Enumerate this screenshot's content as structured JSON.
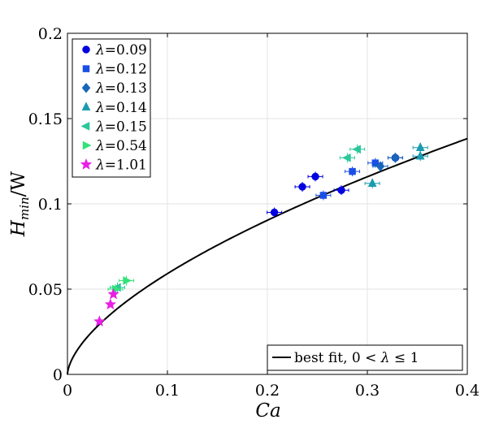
{
  "chart_data": {
    "type": "scatter",
    "xlabel": "Ca",
    "ylabel": "H_min/W",
    "ylabel_main": "H",
    "ylabel_sub": "min",
    "ylabel_tail": "/W",
    "xlim": [
      0,
      0.4
    ],
    "ylim": [
      0,
      0.2
    ],
    "xticks": [
      0,
      0.1,
      0.2,
      0.3,
      0.4
    ],
    "xtick_labels": [
      "0",
      "0.1",
      "0.2",
      "0.3",
      "0.4"
    ],
    "yticks": [
      0,
      0.05,
      0.1,
      0.15,
      0.2
    ],
    "ytick_labels": [
      "0",
      "0.05",
      "0.1",
      "0.15",
      "0.2"
    ],
    "grid": true,
    "legend_position": "top-left",
    "series": [
      {
        "name": "λ=0.09",
        "label_var": "λ",
        "label_val": "=0.09",
        "marker": "circle",
        "color": "#0000e0",
        "points": [
          [
            0.207,
            0.095
          ],
          [
            0.235,
            0.11
          ],
          [
            0.248,
            0.116
          ],
          [
            0.274,
            0.108
          ],
          [
            0.328,
            0.127
          ]
        ]
      },
      {
        "name": "λ=0.12",
        "label_var": "λ",
        "label_val": "=0.12",
        "marker": "square",
        "color": "#1a4fe6",
        "points": [
          [
            0.256,
            0.105
          ],
          [
            0.285,
            0.119
          ],
          [
            0.308,
            0.124
          ]
        ]
      },
      {
        "name": "λ=0.13",
        "label_var": "λ",
        "label_val": "=0.13",
        "marker": "diamond",
        "color": "#1667b8",
        "points": [
          [
            0.313,
            0.122
          ],
          [
            0.328,
            0.127
          ]
        ]
      },
      {
        "name": "λ=0.14",
        "label_var": "λ",
        "label_val": "=0.14",
        "marker": "triangle-up",
        "color": "#1a9bb0",
        "points": [
          [
            0.305,
            0.112
          ],
          [
            0.353,
            0.128
          ],
          [
            0.353,
            0.133
          ]
        ]
      },
      {
        "name": "λ=0.15",
        "label_var": "λ",
        "label_val": "=0.15",
        "marker": "triangle-left",
        "color": "#2bc79a",
        "points": [
          [
            0.28,
            0.127
          ],
          [
            0.29,
            0.132
          ],
          [
            0.05,
            0.051
          ]
        ]
      },
      {
        "name": "λ=0.54",
        "label_var": "λ",
        "label_val": "=0.54",
        "marker": "triangle-right",
        "color": "#33e37a",
        "points": [
          [
            0.059,
            0.055
          ],
          [
            0.048,
            0.05
          ]
        ]
      },
      {
        "name": "λ=1.01",
        "label_var": "λ",
        "label_val": "=1.01",
        "marker": "star",
        "color": "#e81ee6",
        "points": [
          [
            0.032,
            0.031
          ],
          [
            0.043,
            0.041
          ],
          [
            0.046,
            0.047
          ]
        ]
      }
    ],
    "fit": {
      "name": "best fit, 0 < λ ≤ 1",
      "label_prefix": "best fit, 0 < ",
      "label_var": "λ",
      "label_suffix": " ≤ 1",
      "model": "power",
      "coefficient": 0.2425,
      "exponent": 0.6133,
      "color": "#000000"
    }
  }
}
